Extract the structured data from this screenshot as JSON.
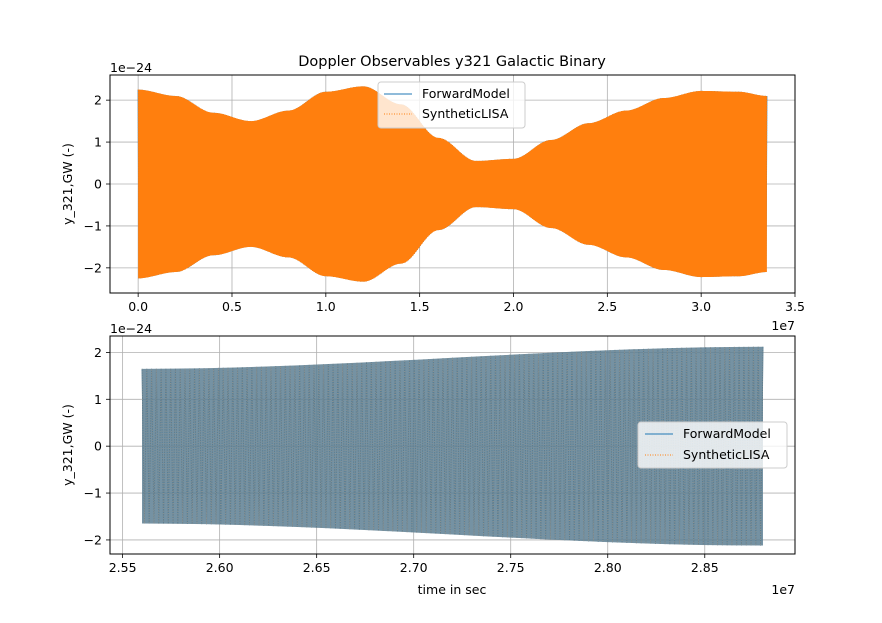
{
  "colors": {
    "forward": "#1f77b4",
    "synthetic": "#ff7f0e",
    "grid": "#b0b0b0"
  },
  "chart_data": [
    {
      "type": "line",
      "title": "Doppler Observables y321 Galactic Binary",
      "xlabel": "",
      "ylabel": "y_321,GW (-)",
      "y_offset_text": "1e−24",
      "x_offset_text": "1e7",
      "xlim": [
        -0.15,
        3.5
      ],
      "ylim": [
        -2.6,
        2.6
      ],
      "xticks": [
        0.0,
        0.5,
        1.0,
        1.5,
        2.0,
        2.5,
        3.0,
        3.5
      ],
      "xtick_labels": [
        "0.0",
        "0.5",
        "1.0",
        "1.5",
        "2.0",
        "2.5",
        "3.0",
        "3.5"
      ],
      "yticks": [
        -2,
        -1,
        0,
        1,
        2
      ],
      "ytick_labels": [
        "−2",
        "−1",
        "0",
        "1",
        "2"
      ],
      "grid": true,
      "legend_position": "upper-center",
      "note": "units: x in 1e7 s, y in 1e-24; high-frequency oscillation filling an amplitude envelope",
      "series": [
        {
          "name": "ForwardModel",
          "style": "solid",
          "envelope": {
            "x": [
              0.0,
              0.2,
              0.4,
              0.6,
              0.8,
              1.0,
              1.2,
              1.4,
              1.6,
              1.8,
              2.0,
              2.2,
              2.4,
              2.6,
              2.8,
              3.0,
              3.2,
              3.35
            ],
            "amplitude": [
              2.25,
              2.1,
              1.7,
              1.5,
              1.75,
              2.2,
              2.33,
              1.9,
              1.1,
              0.55,
              0.6,
              1.05,
              1.45,
              1.75,
              2.05,
              2.22,
              2.2,
              2.1
            ]
          }
        },
        {
          "name": "SyntheticLISA",
          "style": "dotted",
          "envelope": {
            "x": [
              0.0,
              0.2,
              0.4,
              0.6,
              0.8,
              1.0,
              1.2,
              1.4,
              1.6,
              1.8,
              2.0,
              2.2,
              2.4,
              2.6,
              2.8,
              3.0,
              3.2,
              3.35
            ],
            "amplitude": [
              2.25,
              2.1,
              1.7,
              1.5,
              1.75,
              2.2,
              2.33,
              1.9,
              1.1,
              0.55,
              0.6,
              1.05,
              1.45,
              1.75,
              2.05,
              2.22,
              2.2,
              2.1
            ]
          }
        }
      ]
    },
    {
      "type": "line",
      "title": "",
      "xlabel": "time in sec",
      "ylabel": "y_321,GW (-)",
      "y_offset_text": "1e−24",
      "x_offset_text": "1e7",
      "xlim": [
        2.5435,
        2.8965
      ],
      "ylim": [
        -2.3,
        2.35
      ],
      "xticks": [
        2.55,
        2.6,
        2.65,
        2.7,
        2.75,
        2.8,
        2.85
      ],
      "xtick_labels": [
        "2.55",
        "2.60",
        "2.65",
        "2.70",
        "2.75",
        "2.80",
        "2.85"
      ],
      "yticks": [
        -2,
        -1,
        0,
        1,
        2
      ],
      "ytick_labels": [
        "−2",
        "−1",
        "0",
        "1",
        "2"
      ],
      "grid": true,
      "legend_position": "center-right",
      "note": "units: x in 1e7 s, y in 1e-24; zoomed segment, oscillation with slowly growing envelope",
      "series": [
        {
          "name": "ForwardModel",
          "style": "solid",
          "envelope": {
            "x": [
              2.56,
              2.88
            ],
            "amplitude": [
              1.65,
              2.12
            ]
          }
        },
        {
          "name": "SyntheticLISA",
          "style": "dotted",
          "envelope": {
            "x": [
              2.56,
              2.88
            ],
            "amplitude": [
              1.65,
              2.12
            ]
          }
        }
      ]
    }
  ]
}
